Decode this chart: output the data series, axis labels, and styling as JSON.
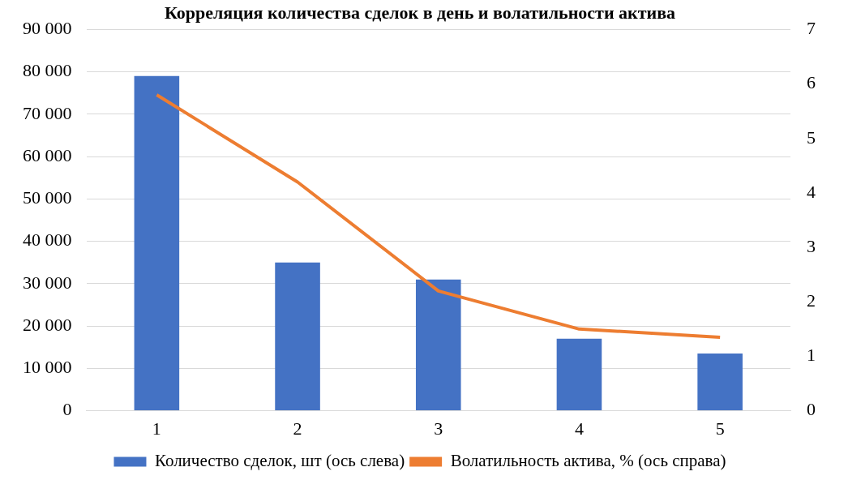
{
  "chart_data": {
    "type": "bar",
    "title": "Корреляция количества сделок в день и волатильности актива",
    "categories": [
      "1",
      "2",
      "3",
      "4",
      "5"
    ],
    "series": [
      {
        "name": "Количество сделок, шт (ось слева)",
        "color": "#4472c4",
        "values": [
          79000,
          35000,
          31000,
          17000,
          13500
        ]
      },
      {
        "name": "Волатильность актива, % (ось справа)",
        "type": "line",
        "axis": "y2",
        "color": "#ed7d31",
        "values": [
          5.8,
          4.2,
          2.2,
          1.5,
          1.35
        ],
        "marker": "none"
      }
    ],
    "ylim": [
      0,
      90000
    ],
    "yticks": [
      {
        "value": 0,
        "label": "0"
      },
      {
        "value": 10000,
        "label": "10 000"
      },
      {
        "value": 20000,
        "label": "20 000"
      },
      {
        "value": 30000,
        "label": "30 000"
      },
      {
        "value": 40000,
        "label": "40 000"
      },
      {
        "value": 50000,
        "label": "50 000"
      },
      {
        "value": 60000,
        "label": "60 000"
      },
      {
        "value": 70000,
        "label": "70 000"
      },
      {
        "value": 80000,
        "label": "80 000"
      },
      {
        "value": 90000,
        "label": "90 000"
      }
    ],
    "y2lim": [
      0,
      7
    ],
    "y2ticks": [
      0,
      1,
      2,
      3,
      4,
      5,
      6,
      7
    ],
    "grid": "y",
    "legend": "bottom"
  }
}
